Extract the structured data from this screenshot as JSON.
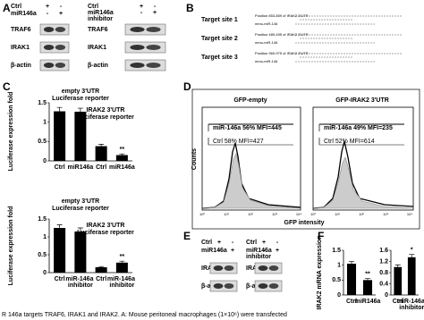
{
  "panels": {
    "labels": [
      "A",
      "B",
      "C",
      "D",
      "E",
      "F"
    ]
  },
  "panel_a": {
    "left": {
      "rows": [
        "Ctrl",
        "miR146a"
      ],
      "signs": [
        [
          "+",
          "-"
        ],
        [
          "-",
          "+"
        ]
      ],
      "blots": [
        "TRAF6",
        "IRAK1",
        "β-actin"
      ]
    },
    "right": {
      "rows": [
        "Ctrl",
        "miR146a inhibitor"
      ],
      "signs": [
        [
          "+",
          "-"
        ],
        [
          "-",
          "+"
        ]
      ],
      "blots": [
        "TRAF6",
        "IRAK1",
        "β-actin"
      ]
    }
  },
  "panel_b": {
    "sites": [
      {
        "label": "Target site 1",
        "position": "Position 853-859 of IRAK2 3'UTR",
        "mirna": "mmu-miR-146"
      },
      {
        "label": "Target site 2",
        "position": "Position 489-495 of IRAK2 3'UTR",
        "mirna": "mmu-miR-146"
      },
      {
        "label": "Target site 3",
        "position": "Position 969-975 of IRAK2 3'UTR",
        "mirna": "mmu-miR-146"
      }
    ]
  },
  "panel_d": {
    "titles": [
      "GFP-empty",
      "GFP-IRAK2 3'UTR"
    ],
    "y_label": "Counts",
    "x_label": "GFP intensity",
    "x_ticks": [
      "10⁰",
      "10¹",
      "10²",
      "10³",
      "10⁴"
    ],
    "legends": [
      [
        "miR-146a 56% MFI=445",
        "Ctrl 58% MFI=427"
      ],
      [
        "miR-146a 49% MFI=235",
        "Ctrl 52% MFI=614"
      ]
    ]
  },
  "panel_e": {
    "left": {
      "rows": [
        "Ctrl",
        "miR146a"
      ],
      "signs": [
        [
          "+",
          "-"
        ],
        [
          "-",
          "+"
        ]
      ],
      "blots": [
        "IRAK2",
        "β-actin"
      ]
    },
    "right": {
      "rows": [
        "Ctrl",
        "miR146a inhibitor"
      ],
      "signs": [
        [
          "+",
          "-"
        ],
        [
          "-",
          "+"
        ]
      ],
      "blots": [
        "IRAK2",
        "β-actin"
      ]
    }
  },
  "chart_data": [
    {
      "type": "bar",
      "y_label": "Luciferase expression fold",
      "categories": [
        "Ctrl",
        "miR146a",
        "Ctrl",
        "miR146a"
      ],
      "values": [
        1.28,
        1.27,
        0.38,
        0.15
      ],
      "errors": [
        0.1,
        0.09,
        0.05,
        0.03
      ],
      "color": "#000000",
      "ylim": [
        0,
        1.5
      ],
      "yticks": [
        0,
        0.5,
        1,
        1.5
      ],
      "annotations": [
        "empty 3'UTR",
        "Luciferase reporter",
        "IRAK2 3'UTR",
        "Luciferase reporter",
        "**"
      ]
    },
    {
      "type": "bar",
      "y_label": "Luciferase expression fold",
      "categories": [
        "Ctrl",
        "miR-146a inhibitor",
        "Ctrl",
        "miR-146a inhibitor"
      ],
      "values": [
        1.25,
        1.15,
        0.15,
        0.28
      ],
      "errors": [
        0.09,
        0.1,
        0.02,
        0.04
      ],
      "color": "#000000",
      "ylim": [
        0,
        1.5
      ],
      "yticks": [
        0,
        0.5,
        1,
        1.5
      ],
      "annotations": [
        "empty 3'UTR",
        "Luciferase reporter",
        "IRAK2 3'UTR",
        "Luciferase reporter",
        "**"
      ]
    },
    {
      "type": "bar",
      "y_label": "IRAK2 mRNA expression",
      "categories": [
        "Ctrl",
        "miR146a"
      ],
      "values": [
        1.05,
        0.5
      ],
      "errors": [
        0.08,
        0.05
      ],
      "color": "#000000",
      "ylim": [
        0,
        1.5
      ],
      "yticks": [
        0,
        0.5,
        1,
        1.5
      ],
      "annotations": [
        "**"
      ]
    },
    {
      "type": "bar",
      "categories": [
        "Ctrl",
        "miR-146a inhibitor"
      ],
      "values": [
        1.0,
        1.35
      ],
      "errors": [
        0.08,
        0.1
      ],
      "color": "#000000",
      "ylim": [
        0,
        1.6
      ],
      "yticks": [
        0,
        0.4,
        0.8,
        1.2,
        1.6
      ],
      "annotations": [
        "*"
      ]
    }
  ],
  "caption": "R 146a targets TRAF6, IRAK1 and IRAK2. A: Mouse peritoneal macrophages (1×10⁶) were transfected"
}
